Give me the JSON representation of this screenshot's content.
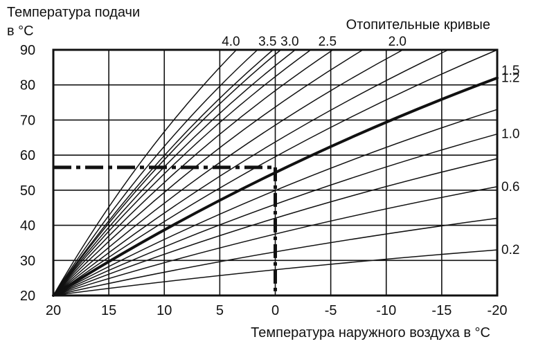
{
  "chart_data": {
    "type": "line",
    "title": "Отопительные кривые",
    "ylabel_line1": "Температура подачи",
    "ylabel_line2": "в °С",
    "xlabel": "Температура наружного воздуха в °С",
    "xlim": [
      20,
      -20
    ],
    "ylim": [
      20,
      90
    ],
    "grid": true,
    "x_ticks": [
      20,
      15,
      10,
      5,
      0,
      -5,
      -10,
      -15,
      -20
    ],
    "y_ticks": [
      20,
      30,
      40,
      50,
      60,
      70,
      80,
      90
    ],
    "x_tick_labels": [
      "20",
      "15",
      "10",
      "5",
      "0",
      "-5",
      "-10",
      "-15",
      "-20"
    ],
    "y_tick_labels": [
      "20",
      "30",
      "40",
      "50",
      "60",
      "70",
      "80",
      "90"
    ],
    "origin": {
      "x": 20,
      "y": 20
    },
    "highlight_curve": "1.2",
    "series": [
      {
        "name": "0.2",
        "x": [
          20,
          -20
        ],
        "y": [
          20,
          33
        ]
      },
      {
        "name": "",
        "x": [
          20,
          -20
        ],
        "y": [
          20,
          42
        ]
      },
      {
        "name": "0.6",
        "x": [
          20,
          -20
        ],
        "y": [
          20,
          51
        ]
      },
      {
        "name": "",
        "x": [
          20,
          -20
        ],
        "y": [
          20,
          59
        ]
      },
      {
        "name": "1.0",
        "x": [
          20,
          -20
        ],
        "y": [
          20,
          66
        ]
      },
      {
        "name": "",
        "x": [
          20,
          -20
        ],
        "y": [
          20,
          73
        ]
      },
      {
        "name": "1.2",
        "x": [
          20,
          -20
        ],
        "y": [
          20,
          82
        ]
      },
      {
        "name": "",
        "x": [
          20,
          -20
        ],
        "y": [
          20,
          90
        ]
      },
      {
        "name": "1.5",
        "x": [
          20,
          -15.6
        ],
        "y": [
          20,
          90
        ]
      },
      {
        "name": "2.0",
        "x": [
          20,
          -11.5
        ],
        "y": [
          20,
          90
        ]
      },
      {
        "name": "",
        "x": [
          20,
          -7.9
        ],
        "y": [
          20,
          90
        ]
      },
      {
        "name": "2.5",
        "x": [
          20,
          -5.2
        ],
        "y": [
          20,
          90
        ]
      },
      {
        "name": "",
        "x": [
          20,
          -3.2
        ],
        "y": [
          20,
          90
        ]
      },
      {
        "name": "3.0",
        "x": [
          20,
          -1.8
        ],
        "y": [
          20,
          90
        ]
      },
      {
        "name": "",
        "x": [
          20,
          -0.5
        ],
        "y": [
          20,
          90
        ]
      },
      {
        "name": "3.5",
        "x": [
          20,
          0.2
        ],
        "y": [
          20,
          90
        ]
      },
      {
        "name": "",
        "x": [
          20,
          1.6
        ],
        "y": [
          20,
          90
        ]
      },
      {
        "name": "4.0",
        "x": [
          20,
          3.5
        ],
        "y": [
          20,
          90
        ]
      }
    ],
    "top_curve_labels": [
      "4.0",
      "3.5",
      "3.0",
      "2.5",
      "2.0"
    ],
    "right_curve_labels": [
      "1.5",
      "1.2",
      "1.0",
      "0.6",
      "0.2"
    ],
    "reference": {
      "outdoor_temp": 0,
      "flow_temp": 56.5,
      "style": "dash-dot"
    }
  }
}
